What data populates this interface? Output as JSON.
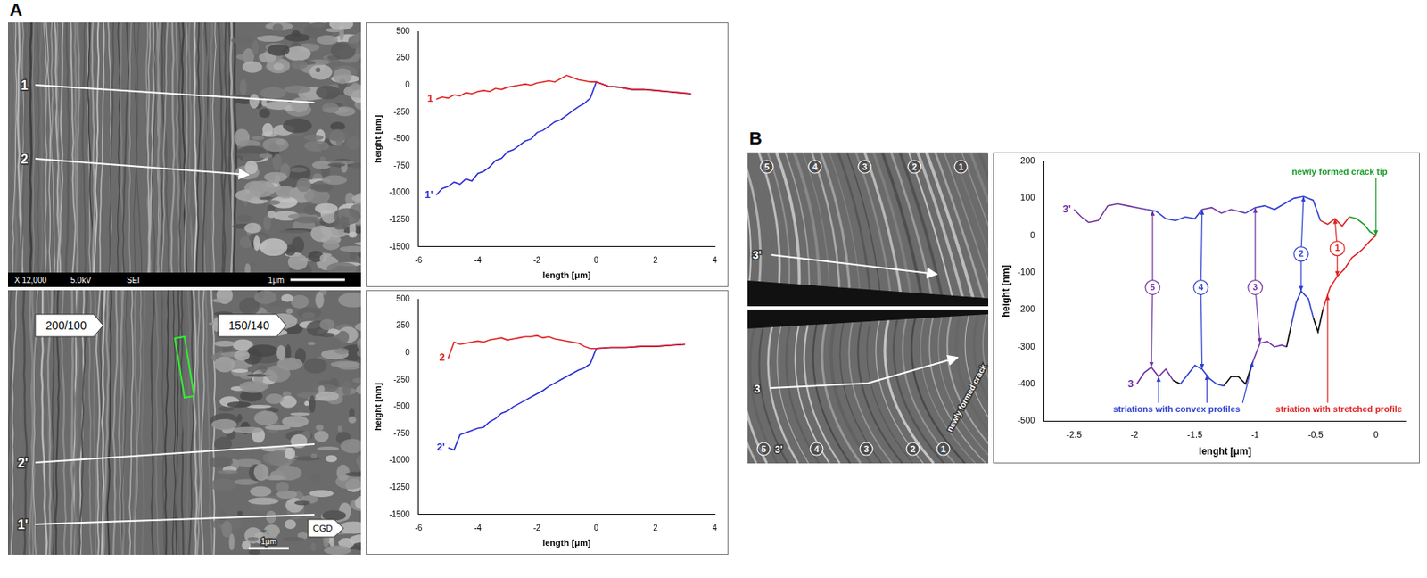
{
  "chart_data": [
    {
      "type": "line",
      "panel_label": "A",
      "xlabel": "length [μm]",
      "ylabel": "height [nm]",
      "xlim": [
        -6,
        4
      ],
      "xticks": [
        -6,
        -4,
        -2,
        0,
        2,
        4
      ],
      "ylim": [
        -1500,
        500
      ],
      "yticks": [
        500,
        250,
        0,
        -250,
        -500,
        -750,
        -1000,
        -1250,
        -1500
      ],
      "grid": false,
      "series": [
        {
          "name": "1",
          "color": "#e02020",
          "x": [
            -5.4,
            -5.2,
            -5.0,
            -4.8,
            -4.6,
            -4.4,
            -4.2,
            -4.0,
            -3.8,
            -3.6,
            -3.4,
            -3.2,
            -3.0,
            -2.8,
            -2.6,
            -2.4,
            -2.2,
            -2.0,
            -1.8,
            -1.6,
            -1.4,
            -1.2,
            -1.0,
            -0.8,
            -0.6,
            -0.4,
            -0.2,
            0,
            0.4,
            0.8,
            1.2,
            1.6,
            2.0,
            2.4,
            2.8,
            3.2
          ],
          "values": [
            -130,
            -110,
            -120,
            -90,
            -100,
            -70,
            -80,
            -60,
            -50,
            -60,
            -30,
            -40,
            -20,
            -10,
            0,
            10,
            0,
            20,
            30,
            40,
            30,
            60,
            90,
            70,
            50,
            40,
            30,
            30,
            -10,
            -20,
            -40,
            -40,
            -50,
            -60,
            -70,
            -80
          ]
        },
        {
          "name": "1'",
          "color": "#2b2bd6",
          "x": [
            -5.4,
            -5.2,
            -5.0,
            -4.8,
            -4.6,
            -4.4,
            -4.2,
            -4.0,
            -3.8,
            -3.6,
            -3.4,
            -3.2,
            -3.0,
            -2.8,
            -2.6,
            -2.4,
            -2.2,
            -2.0,
            -1.8,
            -1.6,
            -1.4,
            -1.2,
            -1.0,
            -0.8,
            -0.6,
            -0.4,
            -0.2,
            0,
            0.4,
            0.8,
            1.2,
            1.6,
            2.0,
            2.4,
            2.8,
            3.2
          ],
          "values": [
            -1020,
            -960,
            -940,
            -900,
            -920,
            -870,
            -890,
            -820,
            -800,
            -760,
            -700,
            -680,
            -620,
            -600,
            -560,
            -520,
            -500,
            -440,
            -420,
            -380,
            -340,
            -320,
            -280,
            -240,
            -200,
            -170,
            -120,
            30,
            -10,
            -20,
            -40,
            -40,
            -50,
            -60,
            -70,
            -80
          ]
        }
      ]
    },
    {
      "type": "line",
      "xlabel": "length [μm]",
      "ylabel": "height [nm]",
      "xlim": [
        -6,
        4
      ],
      "xticks": [
        -6,
        -4,
        -2,
        0,
        2,
        4
      ],
      "ylim": [
        -1500,
        500
      ],
      "yticks": [
        500,
        250,
        0,
        -250,
        -500,
        -750,
        -1000,
        -1250,
        -1500
      ],
      "grid": false,
      "series": [
        {
          "name": "2",
          "color": "#e02020",
          "x": [
            -5.0,
            -4.8,
            -4.6,
            -4.4,
            -4.2,
            -4.0,
            -3.8,
            -3.6,
            -3.4,
            -3.2,
            -3.0,
            -2.8,
            -2.6,
            -2.4,
            -2.2,
            -2.0,
            -1.8,
            -1.6,
            -1.4,
            -1.2,
            -1.0,
            -0.8,
            -0.6,
            -0.4,
            -0.2,
            0,
            0.5,
            1,
            1.5,
            2,
            2.5,
            3
          ],
          "values": [
            -50,
            100,
            80,
            90,
            100,
            110,
            100,
            120,
            130,
            140,
            120,
            130,
            140,
            150,
            150,
            160,
            140,
            150,
            130,
            120,
            110,
            100,
            90,
            60,
            40,
            40,
            50,
            50,
            60,
            60,
            70,
            80
          ]
        },
        {
          "name": "2'",
          "color": "#2b2bd6",
          "x": [
            -5.0,
            -4.8,
            -4.6,
            -4.4,
            -4.2,
            -4.0,
            -3.8,
            -3.6,
            -3.4,
            -3.2,
            -3.0,
            -2.8,
            -2.6,
            -2.4,
            -2.2,
            -2.0,
            -1.8,
            -1.6,
            -1.4,
            -1.2,
            -1.0,
            -0.8,
            -0.6,
            -0.4,
            -0.2,
            0,
            0.5,
            1,
            1.5,
            2,
            2.5,
            3
          ],
          "values": [
            -880,
            -900,
            -760,
            -740,
            -720,
            -700,
            -690,
            -640,
            -610,
            -560,
            -540,
            -500,
            -470,
            -440,
            -410,
            -380,
            -350,
            -310,
            -280,
            -250,
            -220,
            -190,
            -160,
            -140,
            -100,
            40,
            50,
            50,
            60,
            60,
            70,
            80
          ]
        }
      ]
    },
    {
      "type": "line",
      "panel_label": "B",
      "xlabel": "lenght [μm]",
      "ylabel": "height [nm]",
      "xlim": [
        -2.75,
        0.25
      ],
      "xticks": [
        -2.5,
        -2,
        -1.5,
        -1,
        -0.5,
        0
      ],
      "ylim": [
        -500,
        200
      ],
      "yticks": [
        200,
        100,
        0,
        -100,
        -200,
        -300,
        -400,
        -500
      ],
      "grid": false,
      "series": [
        {
          "name": "3'",
          "x": [
            -2.5,
            -2.44,
            -2.38,
            -2.3,
            -2.22,
            -2.14,
            -2.06,
            -1.98,
            -1.9,
            -1.82,
            -1.74,
            -1.66,
            -1.58,
            -1.5,
            -1.44,
            -1.36,
            -1.28,
            -1.2,
            -1.14,
            -1.08,
            -1.0,
            -0.92,
            -0.84,
            -0.76,
            -0.68,
            -0.6,
            -0.52,
            -0.46,
            -0.4,
            -0.34,
            -0.28,
            -0.22,
            -0.16,
            -0.1,
            -0.05,
            0
          ],
          "values": [
            70,
            50,
            35,
            40,
            80,
            85,
            80,
            75,
            70,
            65,
            45,
            40,
            50,
            45,
            70,
            75,
            60,
            70,
            65,
            60,
            75,
            80,
            70,
            85,
            100,
            105,
            95,
            40,
            30,
            45,
            25,
            50,
            45,
            30,
            10,
            0
          ],
          "colors": [
            "#7030a0",
            "#7030a0",
            "#7030a0",
            "#7030a0",
            "#7030a0",
            "#7030a0",
            "#7030a0",
            "#7030a0",
            "#2e3fd0",
            "#2e3fd0",
            "#2e3fd0",
            "#2e3fd0",
            "#2e3fd0",
            "#2e3fd0",
            "#7030a0",
            "#7030a0",
            "#7030a0",
            "#7030a0",
            "#7030a0",
            "#2e3fd0",
            "#2e3fd0",
            "#2e3fd0",
            "#2e3fd0",
            "#2e3fd0",
            "#2e3fd0",
            "#2e3fd0",
            "#2e3fd0",
            "#e02020",
            "#e02020",
            "#e02020",
            "#e02020",
            "#1a9a2a",
            "#1a9a2a",
            "#1a9a2a",
            "#1a9a2a",
            "#1a9a2a"
          ]
        },
        {
          "name": "3",
          "x": [
            -1.98,
            -1.92,
            -1.86,
            -1.8,
            -1.74,
            -1.68,
            -1.62,
            -1.56,
            -1.5,
            -1.44,
            -1.38,
            -1.32,
            -1.26,
            -1.2,
            -1.14,
            -1.08,
            -1.02,
            -0.96,
            -0.9,
            -0.84,
            -0.78,
            -0.74,
            -0.7,
            -0.66,
            -0.62,
            -0.56,
            -0.52,
            -0.48,
            -0.44,
            -0.38,
            -0.32,
            -0.26,
            -0.2,
            -0.12,
            -0.05,
            0
          ],
          "values": [
            -400,
            -370,
            -355,
            -380,
            -360,
            -390,
            -400,
            -375,
            -350,
            -360,
            -385,
            -400,
            -405,
            -380,
            -380,
            -400,
            -340,
            -290,
            -285,
            -300,
            -295,
            -300,
            -240,
            -180,
            -150,
            -170,
            -220,
            -260,
            -200,
            -140,
            -110,
            -90,
            -60,
            -40,
            -15,
            0
          ],
          "colors": [
            "#7030a0",
            "#7030a0",
            "#7030a0",
            "#7030a0",
            "#7030a0",
            "#000000",
            "#2e3fd0",
            "#2e3fd0",
            "#2e3fd0",
            "#2e3fd0",
            "#2e3fd0",
            "#2e3fd0",
            "#000000",
            "#000000",
            "#000000",
            "#000000",
            "#7030a0",
            "#7030a0",
            "#7030a0",
            "#7030a0",
            "#7030a0",
            "#000000",
            "#2e3fd0",
            "#2e3fd0",
            "#2e3fd0",
            "#2e3fd0",
            "#000000",
            "#000000",
            "#e02020",
            "#e02020",
            "#e02020",
            "#e02020",
            "#e02020",
            "#e02020",
            "#e02020",
            "#e02020"
          ]
        }
      ],
      "annotations": [
        {
          "text": "5",
          "marker": "circle",
          "color": "#7030a0",
          "x": -1.85,
          "y": -140,
          "arrows": [
            [
              -1.85,
              67
            ],
            [
              -1.86,
              -355
            ]
          ]
        },
        {
          "text": "4",
          "marker": "circle",
          "color": "#2e3fd0",
          "x": -1.45,
          "y": -140,
          "arrows": [
            [
              -1.44,
              70
            ],
            [
              -1.44,
              -360
            ]
          ]
        },
        {
          "text": "3",
          "marker": "circle",
          "color": "#7030a0",
          "x": -1.0,
          "y": -140,
          "arrows": [
            [
              -1.0,
              75
            ],
            [
              -0.96,
              -290
            ]
          ]
        },
        {
          "text": "2",
          "marker": "circle",
          "color": "#2e3fd0",
          "x": -0.62,
          "y": -50,
          "arrows": [
            [
              -0.6,
              105
            ],
            [
              -0.62,
              -150
            ]
          ]
        },
        {
          "text": "1",
          "marker": "circle",
          "color": "#e02020",
          "x": -0.32,
          "y": -35,
          "arrows": [
            [
              -0.34,
              45
            ],
            [
              -0.32,
              -110
            ]
          ]
        },
        {
          "text": "striations with convex profiles",
          "color": "#2e3fd0",
          "x": -1.65,
          "y": -468,
          "arrows": [
            [
              -1.8,
              -380
            ],
            [
              -1.4,
              -375
            ],
            [
              -1.02,
              -340
            ]
          ]
        },
        {
          "text": "striation with stretched profile",
          "color": "#e02020",
          "x": -0.25,
          "y": -468,
          "arrows": [
            [
              -0.4,
              -160
            ]
          ]
        },
        {
          "text": "newly formed crack tip",
          "color": "#1a9a2a",
          "x": -0.3,
          "y": 172,
          "arrows": [
            [
              0,
              0
            ]
          ]
        }
      ]
    }
  ],
  "micrographs": [
    {
      "lines": [
        "1",
        "2"
      ],
      "footer": [
        "X 12,000",
        "5.0kV",
        "SEI"
      ],
      "scale_bar": "1μm"
    },
    {
      "lines": [
        "2'",
        "1'"
      ],
      "boxes": [
        "200/100",
        "150/140",
        "CGD"
      ],
      "scale_bar": "1μm"
    },
    {
      "lines": [
        "3'"
      ],
      "striations": [
        "5",
        "4",
        "3",
        "2",
        "1"
      ]
    },
    {
      "lines": [
        "3"
      ],
      "striations": [
        "5",
        "4",
        "3",
        "2",
        "1"
      ],
      "note": "newly formed crack",
      "corner": "3'"
    }
  ]
}
